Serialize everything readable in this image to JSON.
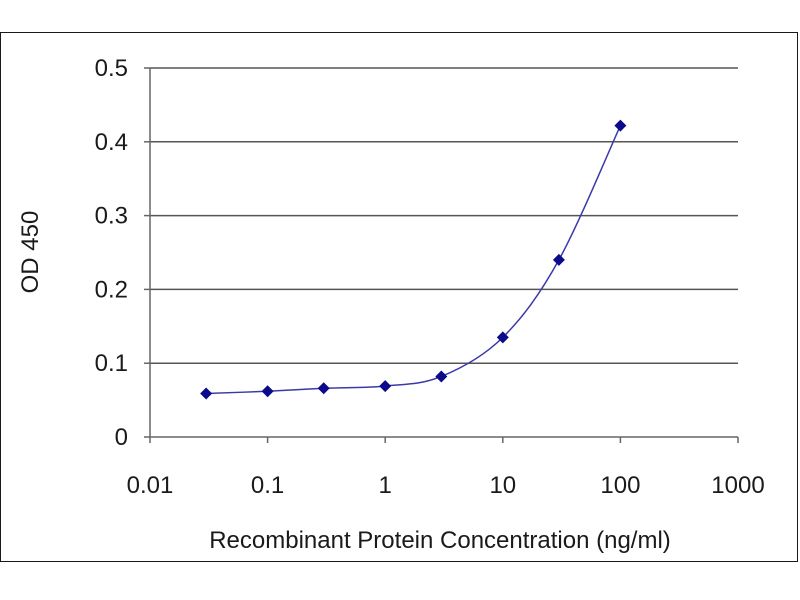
{
  "chart_data": {
    "type": "line",
    "title": "",
    "xlabel": "Recombinant Protein Concentration (ng/ml)",
    "ylabel": "OD 450",
    "x_scale": "log",
    "xlim": [
      0.01,
      1000
    ],
    "ylim": [
      0,
      0.5
    ],
    "x_ticks": [
      0.01,
      0.1,
      1,
      10,
      100,
      1000
    ],
    "x_tick_labels": [
      "0.01",
      "0.1",
      "1",
      "10",
      "100",
      "1000"
    ],
    "y_ticks": [
      0,
      0.1,
      0.2,
      0.3,
      0.4,
      0.5
    ],
    "y_tick_labels": [
      "0",
      "0.1",
      "0.2",
      "0.3",
      "0.4",
      "0.5"
    ],
    "grid": "horizontal",
    "series": [
      {
        "x": [
          0.03,
          0.1,
          0.3,
          1,
          3,
          10,
          30,
          100
        ],
        "y": [
          0.059,
          0.062,
          0.066,
          0.069,
          0.082,
          0.135,
          0.24,
          0.422
        ]
      }
    ],
    "colors": {
      "line": "#3a3aa8",
      "marker": "#0a0a8a",
      "grid": "#555555",
      "axis": "#666666"
    }
  }
}
